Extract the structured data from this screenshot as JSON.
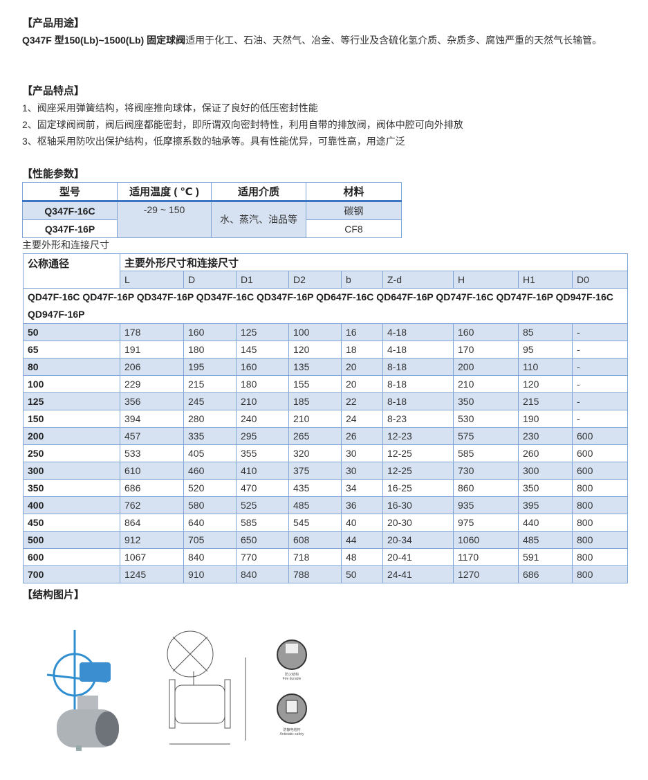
{
  "usage": {
    "heading": "【产品用途】",
    "bold": "Q347F 型150(Lb)~1500(Lb) 固定球阀",
    "text": "适用于化工、石油、天然气、冶金、等行业及含硫化氢介质、杂质多、腐蚀严重的天然气长输管。"
  },
  "features": {
    "heading": "【产品特点】",
    "items": [
      "1、阀座采用弹簧结构，将阀座推向球体，保证了良好的低压密封性能",
      "2、固定球阀阀前，阀后阀座都能密封，即所谓双向密封特性，利用自带的排放阀，阀体中腔可向外排放",
      "3、枢轴采用防吹出保护结构，低摩擦系数的轴承等。具有性能优异，可靠性高，用途广泛"
    ]
  },
  "params": {
    "heading": "【性能参数】",
    "headers": [
      "型号",
      "适用温度 ( ℃ )",
      "适用介质",
      "材料"
    ],
    "models": [
      "Q347F-16C",
      "Q347F-16P"
    ],
    "temperature": "-29 ~ 150",
    "medium": "水、蒸汽、油品等",
    "materials": [
      "碳钢",
      "CF8"
    ]
  },
  "dims": {
    "caption": "主要外形和连接尺寸",
    "col0": "公称通径",
    "group": "主要外形尺寸和连接尺寸",
    "columns": [
      "L",
      "D",
      "D1",
      "D2",
      "b",
      "Z-d",
      "H",
      "H1",
      "D0"
    ],
    "models": "QD47F-16C QD47F-16P QD347F-16P QD347F-16C QD347F-16P QD647F-16C QD647F-16P QD747F-16C QD747F-16P QD947F-16C QD947F-16P",
    "rows": [
      [
        "50",
        "178",
        "160",
        "125",
        "100",
        "16",
        "4-18",
        "160",
        "85",
        "-"
      ],
      [
        "65",
        "191",
        "180",
        "145",
        "120",
        "18",
        "4-18",
        "170",
        "95",
        "-"
      ],
      [
        "80",
        "206",
        "195",
        "160",
        "135",
        "20",
        "8-18",
        "200",
        "110",
        "-"
      ],
      [
        "100",
        "229",
        "215",
        "180",
        "155",
        "20",
        "8-18",
        "210",
        "120",
        "-"
      ],
      [
        "125",
        "356",
        "245",
        "210",
        "185",
        "22",
        "8-18",
        "350",
        "215",
        "-"
      ],
      [
        "150",
        "394",
        "280",
        "240",
        "210",
        "24",
        "8-23",
        "530",
        "190",
        "-"
      ],
      [
        "200",
        "457",
        "335",
        "295",
        "265",
        "26",
        "12-23",
        "575",
        "230",
        "600"
      ],
      [
        "250",
        "533",
        "405",
        "355",
        "320",
        "30",
        "12-25",
        "585",
        "260",
        "600"
      ],
      [
        "300",
        "610",
        "460",
        "410",
        "375",
        "30",
        "12-25",
        "730",
        "300",
        "600"
      ],
      [
        "350",
        "686",
        "520",
        "470",
        "435",
        "34",
        "16-25",
        "860",
        "350",
        "800"
      ],
      [
        "400",
        "762",
        "580",
        "525",
        "485",
        "36",
        "16-30",
        "935",
        "395",
        "800"
      ],
      [
        "450",
        "864",
        "640",
        "585",
        "545",
        "40",
        "20-30",
        "975",
        "440",
        "800"
      ],
      [
        "500",
        "912",
        "705",
        "650",
        "608",
        "44",
        "20-34",
        "1060",
        "485",
        "800"
      ],
      [
        "600",
        "1067",
        "840",
        "770",
        "718",
        "48",
        "20-41",
        "1170",
        "591",
        "800"
      ],
      [
        "700",
        "1245",
        "910",
        "840",
        "788",
        "50",
        "24-41",
        "1270",
        "686",
        "800"
      ]
    ]
  },
  "structure": {
    "heading": "【结构图片】",
    "detail_labels": [
      "防火结构",
      "Fire durable",
      "防静电结构",
      "Antistatic safety"
    ]
  },
  "colors": {
    "border": "#7fa6d6",
    "row_blue": "#d6e2f2",
    "header_rule": "#3a77c0",
    "valve_blue": "#2f8fd0"
  }
}
